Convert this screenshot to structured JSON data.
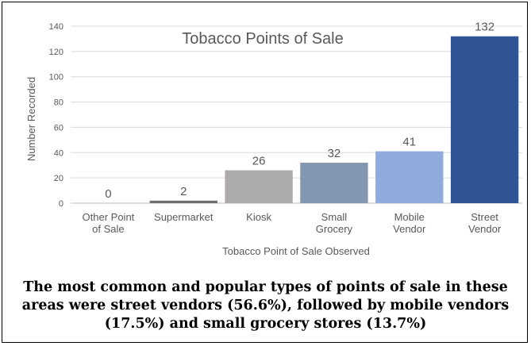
{
  "chart_data": {
    "type": "bar",
    "title": "Tobacco Points of Sale",
    "xlabel": "Tobacco Point of Sale Observed",
    "ylabel": "Number Recorded",
    "ylim": [
      0,
      140
    ],
    "yticks": [
      0,
      20,
      40,
      60,
      80,
      100,
      120,
      140
    ],
    "categories": [
      [
        "Other Point",
        "of Sale"
      ],
      [
        "Supermarket"
      ],
      [
        "Kiosk"
      ],
      [
        "Small",
        "Grocery"
      ],
      [
        "Mobile",
        "Vendor"
      ],
      [
        "Street",
        "Vendor"
      ]
    ],
    "values": [
      0,
      2,
      26,
      32,
      41,
      132
    ],
    "data_labels": [
      "0",
      "2",
      "26",
      "32",
      "41",
      "132"
    ],
    "colors": [
      "#4a4a4a",
      "#6f6f6f",
      "#adaaaa",
      "#8497b0",
      "#8faadc",
      "#2f5597"
    ],
    "grid": true,
    "legend": "none"
  },
  "caption": {
    "line1": "The most common and popular types of points of sale in these",
    "line2": "areas were street vendors (56.6%), followed by mobile vendors",
    "line3": "(17.5%) and small grocery stores (13.7%)"
  },
  "colors": {
    "gridline": "#d9d9d9",
    "text": "#595959",
    "axis": "#bfbfbf"
  }
}
